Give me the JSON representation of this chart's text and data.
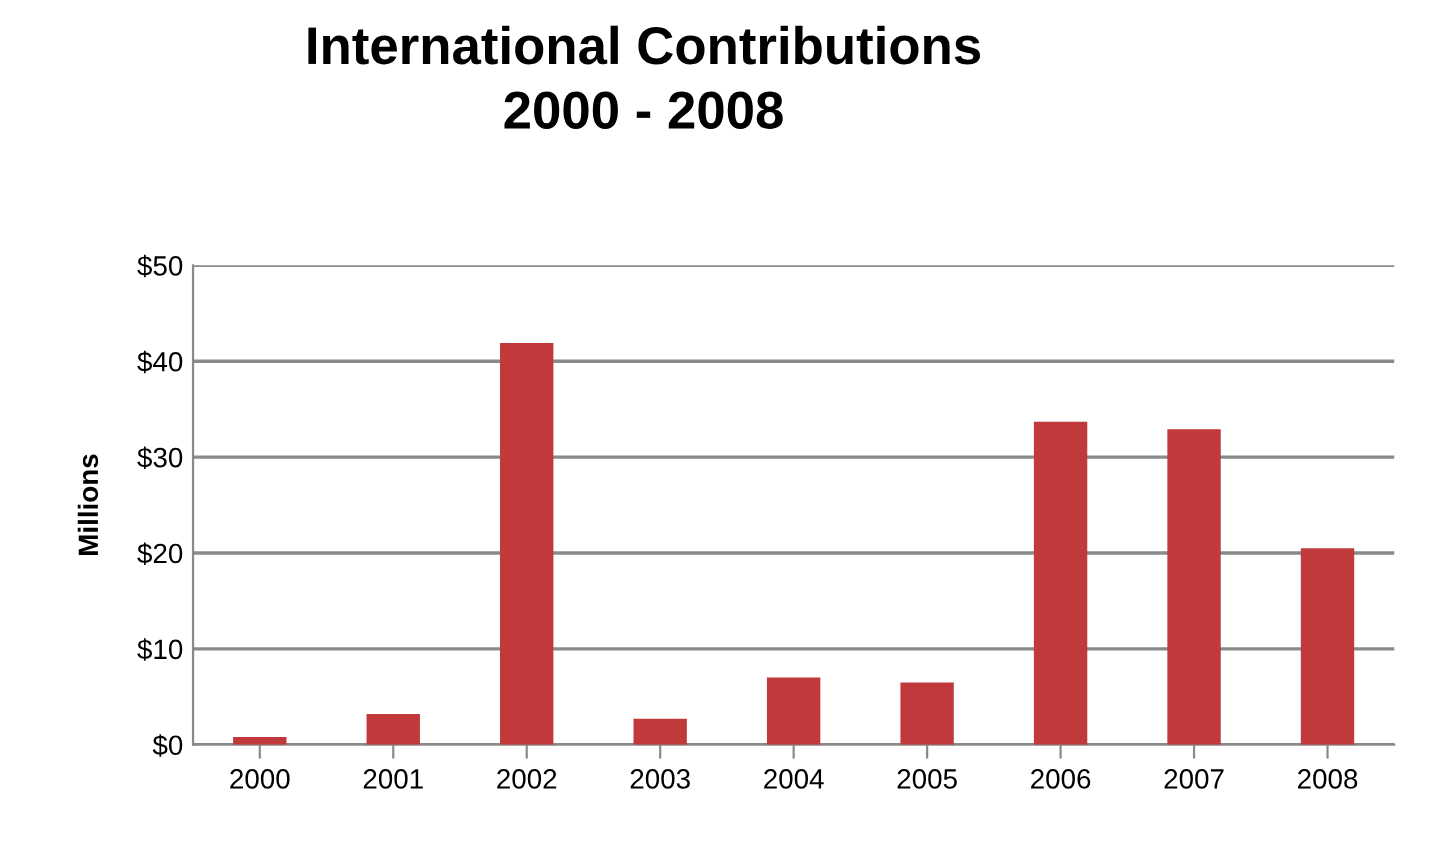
{
  "chart_data": {
    "type": "bar",
    "title": "International Contributions\n2000 - 2008",
    "ylabel": "Millions",
    "categories": [
      "2000",
      "2001",
      "2002",
      "2003",
      "2004",
      "2005",
      "2006",
      "2007",
      "2008"
    ],
    "values": [
      0.8,
      3.2,
      41.9,
      2.7,
      7.0,
      6.5,
      33.7,
      32.9,
      20.5
    ],
    "color": "#c0393b",
    "ylim": [
      0,
      50
    ],
    "yticks": [
      {
        "value": 0,
        "label": "$0"
      },
      {
        "value": 10,
        "label": "$10"
      },
      {
        "value": 20,
        "label": "$20"
      },
      {
        "value": 30,
        "label": "$30"
      },
      {
        "value": 40,
        "label": "$40"
      },
      {
        "value": 50,
        "label": "$50"
      }
    ],
    "grid": "y"
  }
}
